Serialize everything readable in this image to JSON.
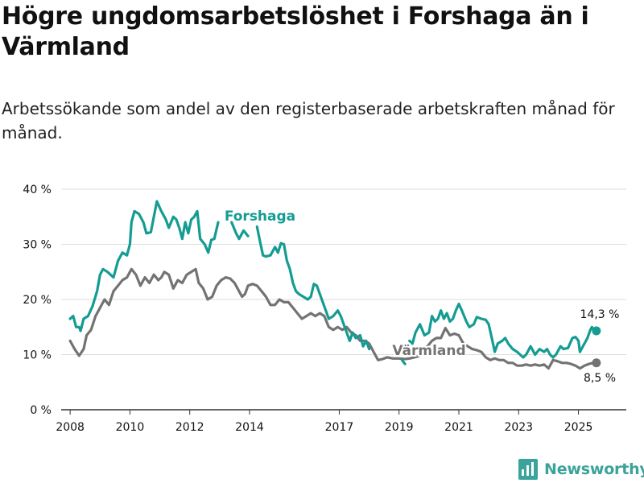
{
  "title": "Högre ungdomsarbetslöshet i Forshaga än i Värmland",
  "subtitle": "Arbetssökande som andel av den registerbaserade arbetskraften månad för månad.",
  "brand": {
    "name": "Newsworthy",
    "icon": "newsworthy-logo-icon"
  },
  "colors": {
    "forshaga": "#149c93",
    "varmland": "#737373",
    "grid": "#dddddd",
    "axis": "#333333",
    "text": "#111111",
    "brand": "#3aa39a"
  },
  "chart_data": {
    "type": "line",
    "title": "Högre ungdomsarbetslöshet i Forshaga än i Värmland",
    "xlabel": "",
    "ylabel": "",
    "xlim": [
      2007.7,
      2026.6
    ],
    "ylim": [
      0,
      40
    ],
    "grid": true,
    "yticks": [
      0,
      10,
      20,
      30,
      40
    ],
    "ytick_labels": [
      "0 %",
      "10 %",
      "20 %",
      "30 %",
      "40 %"
    ],
    "xticks": [
      2008,
      2010,
      2012,
      2014,
      2017,
      2019,
      2021,
      2023,
      2025
    ],
    "xtick_labels": [
      "2008",
      "2010",
      "2012",
      "2014",
      "2017",
      "2019",
      "2021",
      "2023",
      "2025"
    ],
    "series": [
      {
        "name": "Forshaga",
        "label": "Forshaga",
        "last_value_label": "14,3 %",
        "points": [
          [
            2008.0,
            16.5
          ],
          [
            2008.1,
            17.0
          ],
          [
            2008.2,
            15.0
          ],
          [
            2008.3,
            15.0
          ],
          [
            2008.35,
            14.3
          ],
          [
            2008.45,
            16.5
          ],
          [
            2008.6,
            17.0
          ],
          [
            2008.75,
            18.8
          ],
          [
            2008.9,
            21.5
          ],
          [
            2009.0,
            24.5
          ],
          [
            2009.1,
            25.5
          ],
          [
            2009.25,
            25.0
          ],
          [
            2009.45,
            24.0
          ],
          [
            2009.6,
            27.0
          ],
          [
            2009.75,
            28.5
          ],
          [
            2009.9,
            28.0
          ],
          [
            2010.0,
            30.0
          ],
          [
            2010.05,
            34.0
          ],
          [
            2010.15,
            36.0
          ],
          [
            2010.3,
            35.5
          ],
          [
            2010.45,
            34.0
          ],
          [
            2010.55,
            32.0
          ],
          [
            2010.7,
            32.2
          ],
          [
            2010.8,
            35.0
          ],
          [
            2010.9,
            37.8
          ],
          [
            2011.05,
            36.0
          ],
          [
            2011.2,
            34.5
          ],
          [
            2011.3,
            33.0
          ],
          [
            2011.45,
            35.0
          ],
          [
            2011.55,
            34.5
          ],
          [
            2011.65,
            33.0
          ],
          [
            2011.75,
            31.0
          ],
          [
            2011.85,
            34.0
          ],
          [
            2011.95,
            32.0
          ],
          [
            2012.05,
            34.5
          ],
          [
            2012.15,
            35.0
          ],
          [
            2012.25,
            36.0
          ],
          [
            2012.35,
            31.0
          ],
          [
            2012.5,
            30.0
          ],
          [
            2012.62,
            28.5
          ],
          [
            2012.72,
            30.8
          ],
          [
            2012.82,
            31.0
          ],
          [
            2012.95,
            34.0
          ],
          [
            null,
            null
          ],
          [
            2013.4,
            34.0
          ],
          [
            2013.55,
            32.0
          ],
          [
            2013.65,
            31.0
          ],
          [
            2013.8,
            32.5
          ],
          [
            2013.95,
            31.5
          ],
          [
            null,
            null
          ],
          [
            2014.25,
            33.2
          ],
          [
            2014.35,
            30.5
          ],
          [
            2014.45,
            28.0
          ],
          [
            2014.55,
            27.8
          ],
          [
            2014.7,
            28.0
          ],
          [
            2014.85,
            29.5
          ],
          [
            2014.95,
            28.5
          ],
          [
            2015.05,
            30.2
          ],
          [
            2015.15,
            30.0
          ],
          [
            2015.25,
            27.0
          ],
          [
            2015.35,
            25.5
          ],
          [
            2015.45,
            23.0
          ],
          [
            2015.55,
            21.5
          ],
          [
            2015.65,
            21.0
          ],
          [
            2015.8,
            20.5
          ],
          [
            2015.95,
            20.0
          ],
          [
            2016.05,
            20.5
          ],
          [
            2016.15,
            22.8
          ],
          [
            2016.25,
            22.5
          ],
          [
            2016.35,
            21.0
          ],
          [
            2016.45,
            19.5
          ],
          [
            2016.55,
            18.0
          ],
          [
            2016.65,
            16.5
          ],
          [
            2016.8,
            17.0
          ],
          [
            2016.95,
            18.0
          ],
          [
            2017.05,
            17.0
          ],
          [
            2017.15,
            15.5
          ],
          [
            2017.25,
            14.0
          ],
          [
            2017.35,
            12.5
          ],
          [
            2017.45,
            14.0
          ],
          [
            2017.55,
            13.0
          ],
          [
            2017.7,
            13.5
          ],
          [
            2017.8,
            11.5
          ],
          [
            2017.9,
            12.5
          ],
          [
            2018.0,
            11.0
          ],
          [
            null,
            null
          ],
          [
            2019.1,
            9.0
          ],
          [
            2019.2,
            8.3
          ],
          [
            null,
            null
          ],
          [
            2019.35,
            12.5
          ],
          [
            2019.45,
            12.0
          ],
          [
            2019.55,
            14.0
          ],
          [
            2019.7,
            15.5
          ],
          [
            2019.85,
            13.5
          ],
          [
            2020.0,
            14.0
          ],
          [
            2020.1,
            17.0
          ],
          [
            2020.2,
            16.0
          ],
          [
            2020.3,
            16.5
          ],
          [
            2020.4,
            18.0
          ],
          [
            2020.5,
            16.5
          ],
          [
            2020.6,
            17.5
          ],
          [
            2020.7,
            16.0
          ],
          [
            2020.8,
            16.5
          ],
          [
            2020.9,
            18.0
          ],
          [
            2021.0,
            19.2
          ],
          [
            2021.1,
            18.0
          ],
          [
            2021.25,
            16.0
          ],
          [
            2021.35,
            15.0
          ],
          [
            2021.5,
            15.5
          ],
          [
            2021.6,
            16.8
          ],
          [
            2021.75,
            16.5
          ],
          [
            2021.9,
            16.3
          ],
          [
            2022.0,
            15.5
          ],
          [
            2022.1,
            13.0
          ],
          [
            2022.2,
            10.5
          ],
          [
            2022.3,
            12.0
          ],
          [
            2022.45,
            12.5
          ],
          [
            2022.55,
            13.0
          ],
          [
            2022.65,
            12.0
          ],
          [
            2022.8,
            11.0
          ],
          [
            2022.95,
            10.5
          ],
          [
            2023.05,
            10.0
          ],
          [
            2023.15,
            9.5
          ],
          [
            2023.25,
            10.0
          ],
          [
            2023.4,
            11.5
          ],
          [
            2023.55,
            10.0
          ],
          [
            2023.7,
            11.0
          ],
          [
            2023.85,
            10.5
          ],
          [
            2023.95,
            11.0
          ],
          [
            2024.05,
            10.0
          ],
          [
            2024.15,
            9.5
          ],
          [
            2024.25,
            10.0
          ],
          [
            2024.4,
            11.5
          ],
          [
            2024.5,
            11.0
          ],
          [
            2024.65,
            11.2
          ],
          [
            2024.8,
            13.0
          ],
          [
            2024.9,
            13.2
          ],
          [
            2025.0,
            12.5
          ],
          [
            2025.05,
            10.5
          ],
          [
            2025.15,
            11.5
          ],
          [
            2025.25,
            12.5
          ],
          [
            2025.3,
            13.0
          ],
          [
            2025.4,
            14.5
          ],
          [
            2025.45,
            15.0
          ],
          [
            2025.5,
            14.5
          ],
          [
            2025.6,
            14.3
          ]
        ]
      },
      {
        "name": "Värmland",
        "label": "Värmland",
        "last_value_label": "8,5 %",
        "points": [
          [
            2008.0,
            12.5
          ],
          [
            2008.15,
            11.0
          ],
          [
            2008.3,
            9.8
          ],
          [
            2008.45,
            11.0
          ],
          [
            2008.55,
            13.5
          ],
          [
            2008.7,
            14.5
          ],
          [
            2008.85,
            17.0
          ],
          [
            2009.0,
            18.5
          ],
          [
            2009.15,
            20.0
          ],
          [
            2009.3,
            19.0
          ],
          [
            2009.45,
            21.5
          ],
          [
            2009.6,
            22.5
          ],
          [
            2009.75,
            23.5
          ],
          [
            2009.9,
            24.0
          ],
          [
            2010.05,
            25.5
          ],
          [
            2010.2,
            24.5
          ],
          [
            2010.35,
            22.5
          ],
          [
            2010.5,
            24.0
          ],
          [
            2010.65,
            23.0
          ],
          [
            2010.8,
            24.5
          ],
          [
            2010.95,
            23.5
          ],
          [
            2011.05,
            24.0
          ],
          [
            2011.15,
            25.0
          ],
          [
            2011.3,
            24.5
          ],
          [
            2011.45,
            22.0
          ],
          [
            2011.6,
            23.5
          ],
          [
            2011.75,
            23.0
          ],
          [
            2011.9,
            24.5
          ],
          [
            2012.05,
            25.0
          ],
          [
            2012.2,
            25.5
          ],
          [
            2012.3,
            23.0
          ],
          [
            2012.45,
            22.0
          ],
          [
            2012.6,
            20.0
          ],
          [
            2012.75,
            20.5
          ],
          [
            2012.9,
            22.5
          ],
          [
            2013.05,
            23.5
          ],
          [
            2013.2,
            24.0
          ],
          [
            2013.35,
            23.8
          ],
          [
            2013.5,
            23.0
          ],
          [
            2013.6,
            22.0
          ],
          [
            2013.75,
            20.5
          ],
          [
            2013.85,
            21.0
          ],
          [
            2013.95,
            22.5
          ],
          [
            2014.1,
            22.8
          ],
          [
            2014.25,
            22.5
          ],
          [
            2014.4,
            21.5
          ],
          [
            2014.55,
            20.5
          ],
          [
            2014.7,
            19.0
          ],
          [
            2014.85,
            19.0
          ],
          [
            2015.0,
            20.0
          ],
          [
            2015.15,
            19.5
          ],
          [
            2015.3,
            19.5
          ],
          [
            2015.45,
            18.5
          ],
          [
            2015.6,
            17.5
          ],
          [
            2015.75,
            16.5
          ],
          [
            2015.9,
            17.0
          ],
          [
            2016.05,
            17.5
          ],
          [
            2016.2,
            17.0
          ],
          [
            2016.35,
            17.5
          ],
          [
            2016.5,
            17.0
          ],
          [
            2016.65,
            15.0
          ],
          [
            2016.8,
            14.5
          ],
          [
            2016.95,
            15.0
          ],
          [
            2017.1,
            14.5
          ],
          [
            2017.25,
            15.0
          ],
          [
            2017.4,
            14.0
          ],
          [
            2017.55,
            13.5
          ],
          [
            2017.7,
            12.5
          ],
          [
            2017.85,
            12.5
          ],
          [
            2018.0,
            12.0
          ],
          [
            2018.15,
            10.5
          ],
          [
            2018.3,
            9.0
          ],
          [
            2018.45,
            9.2
          ],
          [
            2018.6,
            9.5
          ],
          [
            2018.8,
            9.3
          ],
          [
            2019.0,
            9.3
          ],
          [
            2019.2,
            9.2
          ],
          [
            2019.35,
            9.3
          ],
          [
            2019.5,
            9.5
          ],
          [
            2019.65,
            9.7
          ],
          [
            2019.8,
            10.5
          ],
          [
            2019.95,
            11.5
          ],
          [
            2020.1,
            12.5
          ],
          [
            2020.25,
            13.0
          ],
          [
            2020.4,
            13.0
          ],
          [
            2020.55,
            14.8
          ],
          [
            2020.7,
            13.5
          ],
          [
            2020.85,
            13.8
          ],
          [
            2021.0,
            13.5
          ],
          [
            2021.15,
            12.0
          ],
          [
            2021.3,
            11.5
          ],
          [
            2021.45,
            11.0
          ],
          [
            2021.6,
            10.8
          ],
          [
            2021.75,
            10.5
          ],
          [
            2021.9,
            9.5
          ],
          [
            2022.05,
            9.0
          ],
          [
            2022.2,
            9.3
          ],
          [
            2022.35,
            9.0
          ],
          [
            2022.5,
            9.0
          ],
          [
            2022.65,
            8.5
          ],
          [
            2022.8,
            8.5
          ],
          [
            2022.95,
            8.0
          ],
          [
            2023.1,
            8.0
          ],
          [
            2023.25,
            8.2
          ],
          [
            2023.4,
            8.0
          ],
          [
            2023.55,
            8.2
          ],
          [
            2023.7,
            8.0
          ],
          [
            2023.85,
            8.2
          ],
          [
            2024.0,
            7.5
          ],
          [
            2024.15,
            9.0
          ],
          [
            2024.3,
            8.8
          ],
          [
            2024.45,
            8.5
          ],
          [
            2024.6,
            8.5
          ],
          [
            2024.75,
            8.3
          ],
          [
            2024.9,
            8.0
          ],
          [
            2025.05,
            7.5
          ],
          [
            2025.2,
            8.0
          ],
          [
            2025.35,
            8.3
          ],
          [
            2025.5,
            8.5
          ],
          [
            2025.6,
            8.5
          ]
        ]
      }
    ]
  }
}
